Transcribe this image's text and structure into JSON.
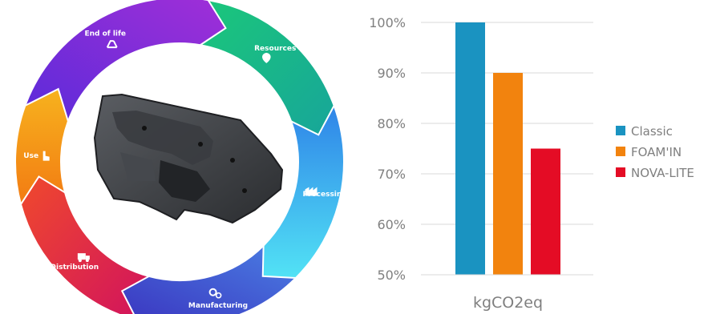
{
  "cycle": {
    "stages": [
      {
        "label": "End of life",
        "icon": "recycle-icon",
        "color": "#7a2fd6"
      },
      {
        "label": "Resources",
        "icon": "leaf-icon",
        "color": "#1fbf8a"
      },
      {
        "label": "Processing",
        "icon": "factory-icon",
        "color": "#35a9ec"
      },
      {
        "label": "Manufacturing",
        "icon": "gears-icon",
        "color": "#3f4fd0"
      },
      {
        "label": "Distribution",
        "icon": "truck-icon",
        "color": "#e8333d"
      },
      {
        "label": "Use",
        "icon": "tap-hand-icon",
        "color": "#f5a016"
      }
    ],
    "center_image": "car-trunk-panel-part"
  },
  "chart_data": {
    "type": "bar",
    "categories": [
      "kgCO2eq"
    ],
    "series": [
      {
        "name": "Classic",
        "values": [
          100
        ],
        "color": "#1a93c1"
      },
      {
        "name": "FOAM'IN",
        "values": [
          90
        ],
        "color": "#f2830e"
      },
      {
        "name": "NOVA-LITE",
        "values": [
          75
        ],
        "color": "#e40c25"
      }
    ],
    "title": "",
    "xlabel": "",
    "ylabel": "",
    "ylim": [
      50,
      100
    ],
    "yticks": [
      "50%",
      "60%",
      "70%",
      "80%",
      "90%",
      "100%"
    ],
    "grid": true,
    "legend": "right"
  }
}
